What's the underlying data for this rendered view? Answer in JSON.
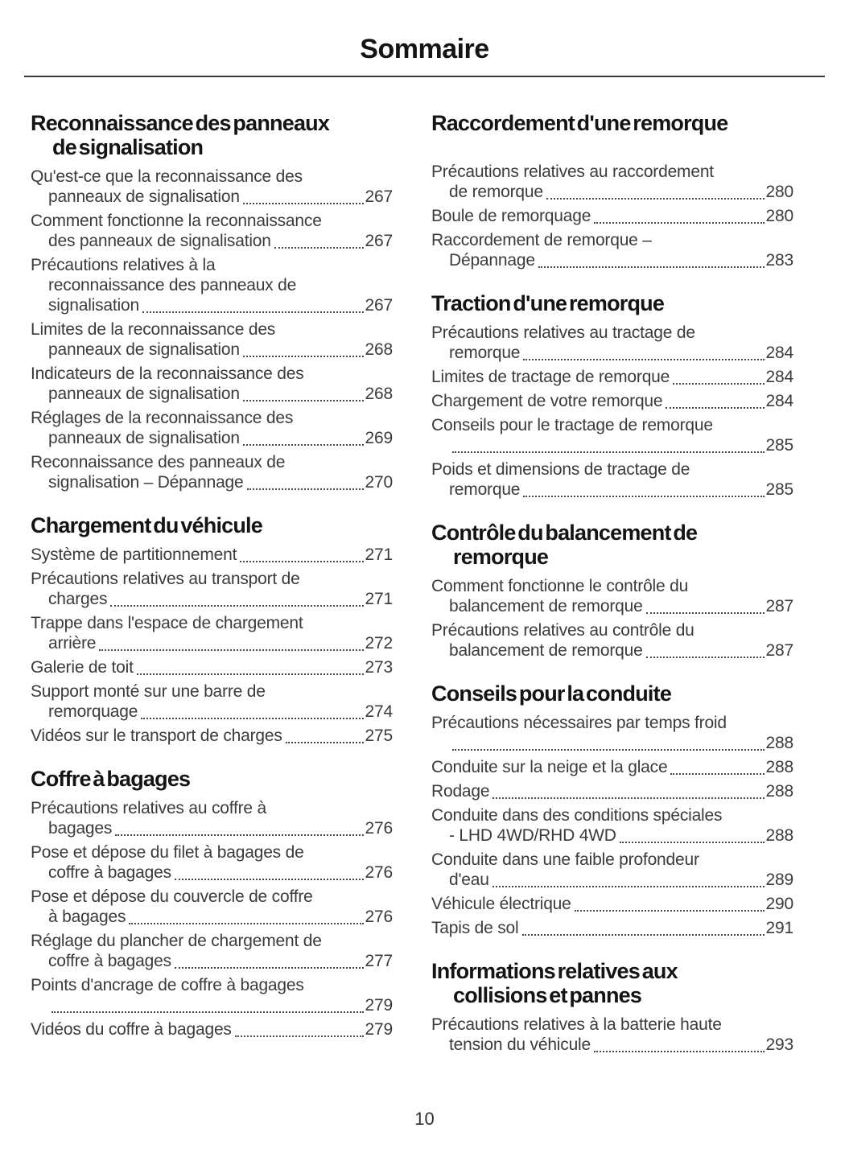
{
  "title": "Sommaire",
  "footer": {
    "page_number": "10"
  },
  "columns": {
    "left": [
      {
        "heading_lines": [
          "Reconnaissance des panneaux",
          "de signalisation"
        ],
        "entries": [
          {
            "lines": [
              "Qu'est-ce que la reconnaissance des",
              "panneaux de signalisation"
            ],
            "page": "267"
          },
          {
            "lines": [
              "Comment fonctionne la reconnaissance",
              "des panneaux de signalisation"
            ],
            "page": "267"
          },
          {
            "lines": [
              "Précautions relatives à la",
              "reconnaissance des panneaux de",
              "signalisation"
            ],
            "page": "267"
          },
          {
            "lines": [
              "Limites de la reconnaissance des",
              "panneaux de signalisation"
            ],
            "page": "268"
          },
          {
            "lines": [
              "Indicateurs de la reconnaissance des",
              "panneaux de signalisation"
            ],
            "page": "268"
          },
          {
            "lines": [
              "Réglages de la reconnaissance des",
              "panneaux de signalisation"
            ],
            "page": "269"
          },
          {
            "lines": [
              "Reconnaissance des panneaux de",
              "signalisation – Dépannage"
            ],
            "page": "270"
          }
        ]
      },
      {
        "heading_lines": [
          "Chargement du véhicule"
        ],
        "entries": [
          {
            "lines": [
              "Système de partitionnement"
            ],
            "page": "271"
          },
          {
            "lines": [
              "Précautions relatives au transport de",
              "charges"
            ],
            "page": "271"
          },
          {
            "lines": [
              "Trappe dans l'espace de chargement",
              "arrière"
            ],
            "page": "272"
          },
          {
            "lines": [
              "Galerie de toit"
            ],
            "page": "273"
          },
          {
            "lines": [
              "Support monté sur une barre de",
              "remorquage"
            ],
            "page": "274"
          },
          {
            "lines": [
              "Vidéos sur le transport de charges"
            ],
            "page": "275"
          }
        ]
      },
      {
        "heading_lines": [
          "Coffre à bagages"
        ],
        "entries": [
          {
            "lines": [
              "Précautions relatives au coffre à",
              "bagages"
            ],
            "page": "276"
          },
          {
            "lines": [
              "Pose et dépose du filet à bagages de",
              "coffre à bagages"
            ],
            "page": "276"
          },
          {
            "lines": [
              "Pose et dépose du couvercle de coffre",
              "à bagages"
            ],
            "page": "276"
          },
          {
            "lines": [
              "Réglage du plancher de chargement de",
              "coffre à bagages"
            ],
            "page": "277"
          },
          {
            "lines": [
              "Points d'ancrage de coffre à bagages",
              ""
            ],
            "page": "279"
          },
          {
            "lines": [
              "Vidéos du coffre à bagages"
            ],
            "page": "279"
          }
        ]
      }
    ],
    "right": [
      {
        "heading_lines": [
          "Raccordement d'une remorque"
        ],
        "gap_after_heading": true,
        "entries": [
          {
            "lines": [
              "Précautions relatives au raccordement",
              "de remorque"
            ],
            "page": "280"
          },
          {
            "lines": [
              "Boule de remorquage"
            ],
            "page": "280"
          },
          {
            "lines": [
              "Raccordement de remorque –",
              "Dépannage"
            ],
            "page": "283"
          }
        ]
      },
      {
        "heading_lines": [
          "Traction d'une remorque"
        ],
        "entries": [
          {
            "lines": [
              "Précautions relatives au tractage de",
              "remorque"
            ],
            "page": "284"
          },
          {
            "lines": [
              "Limites de tractage de remorque"
            ],
            "page": "284"
          },
          {
            "lines": [
              "Chargement de votre remorque"
            ],
            "page": "284"
          },
          {
            "lines": [
              "Conseils pour le tractage de remorque",
              ""
            ],
            "page": "285"
          },
          {
            "lines": [
              "Poids et dimensions de tractage de",
              "remorque"
            ],
            "page": "285"
          }
        ]
      },
      {
        "heading_lines": [
          "Contrôle du balancement de",
          "remorque"
        ],
        "entries": [
          {
            "lines": [
              "Comment fonctionne le contrôle du",
              "balancement de remorque"
            ],
            "page": "287"
          },
          {
            "lines": [
              "Précautions relatives au contrôle du",
              "balancement de remorque"
            ],
            "page": "287"
          }
        ]
      },
      {
        "heading_lines": [
          "Conseils pour la conduite"
        ],
        "entries": [
          {
            "lines": [
              "Précautions nécessaires par temps froid",
              ""
            ],
            "page": "288"
          },
          {
            "lines": [
              "Conduite sur la neige et la glace"
            ],
            "page": "288"
          },
          {
            "lines": [
              "Rodage"
            ],
            "page": "288"
          },
          {
            "lines": [
              "Conduite dans des conditions spéciales",
              "- LHD 4WD/RHD 4WD"
            ],
            "page": "288"
          },
          {
            "lines": [
              "Conduite dans une faible profondeur",
              "d'eau"
            ],
            "page": "289"
          },
          {
            "lines": [
              "Véhicule électrique"
            ],
            "page": "290"
          },
          {
            "lines": [
              "Tapis de sol"
            ],
            "page": "291"
          }
        ]
      },
      {
        "heading_lines": [
          "Informations relatives aux",
          "collisions et pannes"
        ],
        "entries": [
          {
            "lines": [
              "Précautions relatives à la batterie haute",
              "tension du véhicule"
            ],
            "page": "293"
          }
        ]
      }
    ]
  }
}
